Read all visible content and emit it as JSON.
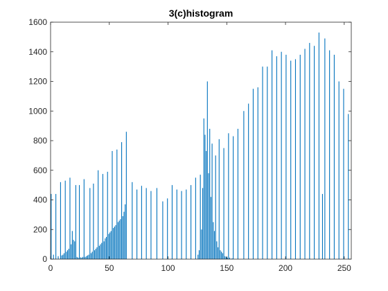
{
  "chart_data": {
    "type": "bar",
    "title": "3(c)histogram",
    "xlabel": "",
    "ylabel": "",
    "xlim": [
      0,
      256
    ],
    "ylim": [
      0,
      1600
    ],
    "xticks": [
      0,
      50,
      100,
      150,
      200,
      250
    ],
    "yticks": [
      0,
      200,
      400,
      600,
      800,
      1000,
      1200,
      1400,
      1600
    ],
    "grid": false,
    "bar_color": "#0072BD",
    "axis_color": "#262626",
    "bins": [
      {
        "x": 0,
        "value": 440
      },
      {
        "x": 4,
        "value": 440
      },
      {
        "x": 8,
        "value": 520
      },
      {
        "x": 12,
        "value": 530
      },
      {
        "x": 16,
        "value": 550
      },
      {
        "x": 21,
        "value": 500
      },
      {
        "x": 24,
        "value": 500
      },
      {
        "x": 28,
        "value": 540
      },
      {
        "x": 33,
        "value": 480
      },
      {
        "x": 36,
        "value": 510
      },
      {
        "x": 40,
        "value": 600
      },
      {
        "x": 44,
        "value": 575
      },
      {
        "x": 48,
        "value": 590
      },
      {
        "x": 52,
        "value": 730
      },
      {
        "x": 56,
        "value": 740
      },
      {
        "x": 60,
        "value": 790
      },
      {
        "x": 64,
        "value": 860
      },
      {
        "x": 69,
        "value": 520
      },
      {
        "x": 73,
        "value": 470
      },
      {
        "x": 77,
        "value": 495
      },
      {
        "x": 81,
        "value": 480
      },
      {
        "x": 85,
        "value": 460
      },
      {
        "x": 90,
        "value": 480
      },
      {
        "x": 95,
        "value": 390
      },
      {
        "x": 99,
        "value": 410
      },
      {
        "x": 103,
        "value": 500
      },
      {
        "x": 107,
        "value": 470
      },
      {
        "x": 111,
        "value": 460
      },
      {
        "x": 115,
        "value": 470
      },
      {
        "x": 119,
        "value": 500
      },
      {
        "x": 123,
        "value": 550
      },
      {
        "x": 127,
        "value": 570
      },
      {
        "x": 130,
        "value": 950
      },
      {
        "x": 131,
        "value": 840
      },
      {
        "x": 133,
        "value": 1200
      },
      {
        "x": 135,
        "value": 880
      },
      {
        "x": 137,
        "value": 780
      },
      {
        "x": 140,
        "value": 700
      },
      {
        "x": 143,
        "value": 810
      },
      {
        "x": 147,
        "value": 750
      },
      {
        "x": 151,
        "value": 850
      },
      {
        "x": 155,
        "value": 830
      },
      {
        "x": 159,
        "value": 880
      },
      {
        "x": 164,
        "value": 1000
      },
      {
        "x": 168,
        "value": 1050
      },
      {
        "x": 172,
        "value": 1150
      },
      {
        "x": 176,
        "value": 1160
      },
      {
        "x": 180,
        "value": 1300
      },
      {
        "x": 184,
        "value": 1300
      },
      {
        "x": 188,
        "value": 1410
      },
      {
        "x": 192,
        "value": 1370
      },
      {
        "x": 196,
        "value": 1400
      },
      {
        "x": 200,
        "value": 1380
      },
      {
        "x": 204,
        "value": 1340
      },
      {
        "x": 208,
        "value": 1350
      },
      {
        "x": 212,
        "value": 1380
      },
      {
        "x": 216,
        "value": 1420
      },
      {
        "x": 220,
        "value": 1460
      },
      {
        "x": 224,
        "value": 1440
      },
      {
        "x": 228,
        "value": 1530
      },
      {
        "x": 231,
        "value": 440
      },
      {
        "x": 233,
        "value": 1490
      },
      {
        "x": 237,
        "value": 1410
      },
      {
        "x": 241,
        "value": 1380
      },
      {
        "x": 245,
        "value": 1200
      },
      {
        "x": 249,
        "value": 1150
      },
      {
        "x": 253,
        "value": 980
      },
      {
        "x": 2,
        "value": 30
      },
      {
        "x": 6,
        "value": 20
      },
      {
        "x": 9,
        "value": 25
      },
      {
        "x": 10,
        "value": 30
      },
      {
        "x": 11,
        "value": 40
      },
      {
        "x": 13,
        "value": 50
      },
      {
        "x": 14,
        "value": 60
      },
      {
        "x": 15,
        "value": 70
      },
      {
        "x": 17,
        "value": 100
      },
      {
        "x": 18,
        "value": 190
      },
      {
        "x": 19,
        "value": 130
      },
      {
        "x": 20,
        "value": 120
      },
      {
        "x": 22,
        "value": 15
      },
      {
        "x": 23,
        "value": 10
      },
      {
        "x": 25,
        "value": 12
      },
      {
        "x": 26,
        "value": 10
      },
      {
        "x": 27,
        "value": 15
      },
      {
        "x": 29,
        "value": 15
      },
      {
        "x": 30,
        "value": 20
      },
      {
        "x": 31,
        "value": 25
      },
      {
        "x": 32,
        "value": 30
      },
      {
        "x": 34,
        "value": 40
      },
      {
        "x": 35,
        "value": 50
      },
      {
        "x": 37,
        "value": 60
      },
      {
        "x": 38,
        "value": 70
      },
      {
        "x": 39,
        "value": 80
      },
      {
        "x": 41,
        "value": 90
      },
      {
        "x": 42,
        "value": 100
      },
      {
        "x": 43,
        "value": 110
      },
      {
        "x": 45,
        "value": 120
      },
      {
        "x": 46,
        "value": 140
      },
      {
        "x": 47,
        "value": 150
      },
      {
        "x": 49,
        "value": 170
      },
      {
        "x": 50,
        "value": 180
      },
      {
        "x": 51,
        "value": 190
      },
      {
        "x": 53,
        "value": 210
      },
      {
        "x": 54,
        "value": 220
      },
      {
        "x": 55,
        "value": 230
      },
      {
        "x": 57,
        "value": 250
      },
      {
        "x": 58,
        "value": 260
      },
      {
        "x": 59,
        "value": 270
      },
      {
        "x": 61,
        "value": 290
      },
      {
        "x": 62,
        "value": 320
      },
      {
        "x": 63,
        "value": 370
      },
      {
        "x": 125,
        "value": 30
      },
      {
        "x": 126,
        "value": 60
      },
      {
        "x": 128,
        "value": 200
      },
      {
        "x": 129,
        "value": 480
      },
      {
        "x": 132,
        "value": 730
      },
      {
        "x": 134,
        "value": 580
      },
      {
        "x": 136,
        "value": 420
      },
      {
        "x": 138,
        "value": 250
      },
      {
        "x": 139,
        "value": 190
      },
      {
        "x": 141,
        "value": 120
      },
      {
        "x": 142,
        "value": 80
      },
      {
        "x": 144,
        "value": 60
      },
      {
        "x": 145,
        "value": 50
      },
      {
        "x": 146,
        "value": 40
      },
      {
        "x": 148,
        "value": 20
      },
      {
        "x": 149,
        "value": 15
      },
      {
        "x": 150,
        "value": 10
      },
      {
        "x": 152,
        "value": 10
      },
      {
        "x": 154,
        "value": 5
      }
    ]
  }
}
